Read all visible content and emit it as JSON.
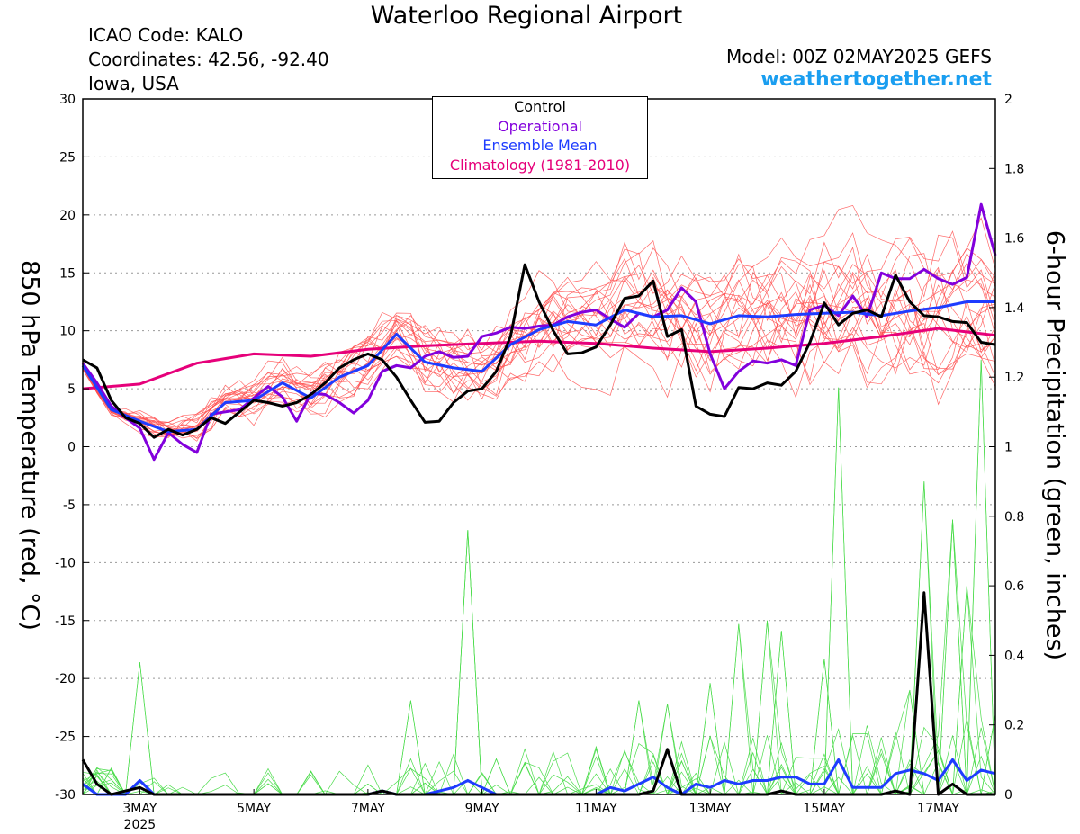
{
  "header": {
    "title": "Waterloo Regional Airport",
    "icao": "ICAO Code: KALO",
    "coordinates": "Coordinates: 42.56, -92.40",
    "region": "Iowa, USA",
    "model": "Model: 00Z 02MAY2025 GEFS",
    "brand": "weathertogether.net"
  },
  "legend": {
    "control": "Control",
    "operational": "Operational",
    "ensemble_mean": "Ensemble Mean",
    "climatology": "Climatology (1981-2010)"
  },
  "colors": {
    "control": "#000000",
    "operational": "#8200dc",
    "ensemble_mean": "#1e3cff",
    "climatology": "#e6007a",
    "members_temp": "#ff4d4d",
    "members_precip": "#4bdc4b",
    "brand": "#1a9ef0"
  },
  "chart_data": {
    "type": "line",
    "x_unit": "days since 00Z 02MAY2025",
    "xlim": [
      0,
      16
    ],
    "x_ticks": [
      {
        "x": 1,
        "label": "3MAY",
        "sub": "2025"
      },
      {
        "x": 3,
        "label": "5MAY"
      },
      {
        "x": 5,
        "label": "7MAY"
      },
      {
        "x": 7,
        "label": "9MAY"
      },
      {
        "x": 9,
        "label": "11MAY"
      },
      {
        "x": 11,
        "label": "13MAY"
      },
      {
        "x": 13,
        "label": "15MAY"
      },
      {
        "x": 15,
        "label": "17MAY"
      }
    ],
    "y_left": {
      "label": "850 hPa Temperature (red, °C)",
      "lim": [
        -30,
        30
      ],
      "ticks": [
        30,
        25,
        20,
        15,
        10,
        5,
        0,
        -5,
        -10,
        -15,
        -20,
        -25,
        -30
      ]
    },
    "y_right": {
      "label": "6-hour Precipitation (green, inches)",
      "lim": [
        0,
        2
      ],
      "ticks": [
        "2",
        "1.8",
        "1.6",
        "1.4",
        "1.2",
        "1",
        "0.8",
        "0.6",
        "0.4",
        "0.2",
        "0"
      ]
    },
    "grid": "horizontal dotted",
    "legend_position": "top-center",
    "series": [
      {
        "name": "Operational",
        "axis": "temperature",
        "color": "#8200dc",
        "points": [
          [
            0,
            7.2
          ],
          [
            0.25,
            5.5
          ],
          [
            0.5,
            3.5
          ],
          [
            0.75,
            2.5
          ],
          [
            1,
            1.6
          ],
          [
            1.25,
            -1.1
          ],
          [
            1.5,
            1.2
          ],
          [
            1.75,
            0.2
          ],
          [
            2,
            -0.5
          ],
          [
            2.25,
            2.8
          ],
          [
            2.5,
            3
          ],
          [
            2.75,
            3.2
          ],
          [
            3,
            4.2
          ],
          [
            3.25,
            5.2
          ],
          [
            3.5,
            4.3
          ],
          [
            3.75,
            2.2
          ],
          [
            4,
            4.6
          ],
          [
            4.25,
            4.5
          ],
          [
            4.5,
            3.8
          ],
          [
            4.75,
            2.9
          ],
          [
            5,
            4
          ],
          [
            5.25,
            6.5
          ],
          [
            5.5,
            7
          ],
          [
            5.75,
            6.8
          ],
          [
            6,
            7.8
          ],
          [
            6.25,
            8.2
          ],
          [
            6.5,
            7.7
          ],
          [
            6.75,
            7.8
          ],
          [
            7,
            9.5
          ],
          [
            7.25,
            9.8
          ],
          [
            7.5,
            10.3
          ],
          [
            7.75,
            10.2
          ],
          [
            8,
            10.4
          ],
          [
            8.25,
            10.5
          ],
          [
            8.5,
            11.2
          ],
          [
            8.75,
            11.6
          ],
          [
            9,
            11.8
          ],
          [
            9.25,
            11
          ],
          [
            9.5,
            10.3
          ],
          [
            9.75,
            11.5
          ],
          [
            10,
            11.2
          ],
          [
            10.25,
            11.8
          ],
          [
            10.5,
            13.7
          ],
          [
            10.75,
            12.5
          ],
          [
            11,
            8
          ],
          [
            11.25,
            5
          ],
          [
            11.5,
            6.5
          ],
          [
            11.75,
            7.4
          ],
          [
            12,
            7.2
          ],
          [
            12.25,
            7.5
          ],
          [
            12.5,
            7
          ],
          [
            12.75,
            11.8
          ],
          [
            13,
            12.2
          ],
          [
            13.25,
            11.3
          ],
          [
            13.5,
            13
          ],
          [
            13.75,
            11.2
          ],
          [
            14,
            15
          ],
          [
            14.25,
            14.5
          ],
          [
            14.5,
            14.5
          ],
          [
            14.75,
            15.3
          ],
          [
            15,
            14.5
          ],
          [
            15.25,
            14
          ],
          [
            15.5,
            14.6
          ],
          [
            15.75,
            20.9
          ],
          [
            16,
            16.5
          ]
        ]
      },
      {
        "name": "Ensemble Mean",
        "axis": "temperature",
        "color": "#1e3cff",
        "points": [
          [
            0,
            7
          ],
          [
            0.5,
            3.2
          ],
          [
            1,
            2.2
          ],
          [
            1.5,
            1.3
          ],
          [
            2,
            1.5
          ],
          [
            2.5,
            3.8
          ],
          [
            3,
            4
          ],
          [
            3.5,
            5.5
          ],
          [
            4,
            4.2
          ],
          [
            4.5,
            6
          ],
          [
            5,
            7
          ],
          [
            5.5,
            9.7
          ],
          [
            6,
            7.3
          ],
          [
            6.5,
            6.8
          ],
          [
            7,
            6.5
          ],
          [
            7.5,
            8.8
          ],
          [
            8,
            10.1
          ],
          [
            8.5,
            10.8
          ],
          [
            9,
            10.5
          ],
          [
            9.5,
            11.8
          ],
          [
            10,
            11.2
          ],
          [
            10.5,
            11.3
          ],
          [
            11,
            10.6
          ],
          [
            11.5,
            11.3
          ],
          [
            12,
            11.2
          ],
          [
            12.5,
            11.4
          ],
          [
            13,
            11.5
          ],
          [
            13.5,
            11.6
          ],
          [
            14,
            11.3
          ],
          [
            14.5,
            11.7
          ],
          [
            15,
            12
          ],
          [
            15.5,
            12.5
          ],
          [
            16,
            12.5
          ]
        ]
      },
      {
        "name": "Control",
        "axis": "temperature",
        "color": "#000000",
        "points": [
          [
            0,
            7.5
          ],
          [
            0.25,
            6.8
          ],
          [
            0.5,
            4
          ],
          [
            0.75,
            2.5
          ],
          [
            1,
            2
          ],
          [
            1.25,
            0.8
          ],
          [
            1.5,
            1.5
          ],
          [
            1.75,
            1
          ],
          [
            2,
            1.5
          ],
          [
            2.25,
            2.5
          ],
          [
            2.5,
            2
          ],
          [
            2.75,
            3
          ],
          [
            3,
            4
          ],
          [
            3.25,
            3.8
          ],
          [
            3.5,
            3.5
          ],
          [
            3.75,
            3.8
          ],
          [
            4,
            4.5
          ],
          [
            4.25,
            5.5
          ],
          [
            4.5,
            6.8
          ],
          [
            4.75,
            7.5
          ],
          [
            5,
            8
          ],
          [
            5.25,
            7.5
          ],
          [
            5.5,
            6
          ],
          [
            5.75,
            4
          ],
          [
            6,
            2.1
          ],
          [
            6.25,
            2.2
          ],
          [
            6.5,
            3.8
          ],
          [
            6.75,
            4.8
          ],
          [
            7,
            5
          ],
          [
            7.25,
            6.5
          ],
          [
            7.5,
            9.5
          ],
          [
            7.75,
            15.7
          ],
          [
            8,
            12.5
          ],
          [
            8.25,
            10
          ],
          [
            8.5,
            8
          ],
          [
            8.75,
            8.1
          ],
          [
            9,
            8.6
          ],
          [
            9.25,
            10.5
          ],
          [
            9.5,
            12.8
          ],
          [
            9.75,
            13
          ],
          [
            10,
            14.3
          ],
          [
            10.25,
            9.5
          ],
          [
            10.5,
            10.1
          ],
          [
            10.75,
            3.5
          ],
          [
            11,
            2.8
          ],
          [
            11.25,
            2.6
          ],
          [
            11.5,
            5.1
          ],
          [
            11.75,
            5
          ],
          [
            12,
            5.5
          ],
          [
            12.25,
            5.3
          ],
          [
            12.5,
            6.5
          ],
          [
            12.75,
            9
          ],
          [
            13,
            12.4
          ],
          [
            13.25,
            10.5
          ],
          [
            13.5,
            11.5
          ],
          [
            13.75,
            11.8
          ],
          [
            14,
            11.2
          ],
          [
            14.25,
            14.8
          ],
          [
            14.5,
            12.5
          ],
          [
            14.75,
            11.3
          ],
          [
            15,
            11.2
          ],
          [
            15.25,
            10.8
          ],
          [
            15.5,
            10.7
          ],
          [
            15.75,
            9
          ],
          [
            16,
            8.8
          ]
        ]
      },
      {
        "name": "Climatology (1981-2010)",
        "axis": "temperature",
        "color": "#e6007a",
        "points": [
          [
            0,
            5
          ],
          [
            1,
            5.4
          ],
          [
            2,
            7.2
          ],
          [
            3,
            8
          ],
          [
            4,
            7.8
          ],
          [
            5,
            8.4
          ],
          [
            6,
            8.7
          ],
          [
            7,
            8.9
          ],
          [
            8,
            9.1
          ],
          [
            9,
            8.9
          ],
          [
            10,
            8.5
          ],
          [
            11,
            8.2
          ],
          [
            12,
            8.5
          ],
          [
            13,
            8.9
          ],
          [
            14,
            9.5
          ],
          [
            15,
            10.2
          ],
          [
            16,
            9.6
          ]
        ]
      },
      {
        "name": "Ensemble Mean",
        "axis": "precipitation",
        "color": "#1e3cff",
        "points": [
          [
            0,
            0.03
          ],
          [
            0.25,
            0
          ],
          [
            0.5,
            0
          ],
          [
            0.75,
            0
          ],
          [
            1,
            0.04
          ],
          [
            1.25,
            0
          ],
          [
            1.5,
            0
          ],
          [
            3,
            0
          ],
          [
            4,
            0
          ],
          [
            4.25,
            0
          ],
          [
            5,
            0
          ],
          [
            5.25,
            0.01
          ],
          [
            5.5,
            0
          ],
          [
            6,
            0
          ],
          [
            6.5,
            0.02
          ],
          [
            6.75,
            0.04
          ],
          [
            7,
            0.02
          ],
          [
            7.25,
            0
          ],
          [
            9,
            0
          ],
          [
            9.25,
            0.02
          ],
          [
            9.5,
            0.01
          ],
          [
            9.75,
            0.03
          ],
          [
            10,
            0.05
          ],
          [
            10.25,
            0.02
          ],
          [
            10.5,
            0
          ],
          [
            10.75,
            0.03
          ],
          [
            11,
            0.02
          ],
          [
            11.25,
            0.04
          ],
          [
            11.5,
            0.03
          ],
          [
            11.75,
            0.04
          ],
          [
            12,
            0.04
          ],
          [
            12.25,
            0.05
          ],
          [
            12.5,
            0.05
          ],
          [
            12.75,
            0.03
          ],
          [
            13,
            0.03
          ],
          [
            13.25,
            0.1
          ],
          [
            13.5,
            0.02
          ],
          [
            13.75,
            0.02
          ],
          [
            14,
            0.02
          ],
          [
            14.25,
            0.06
          ],
          [
            14.5,
            0.07
          ],
          [
            14.75,
            0.06
          ],
          [
            15,
            0.04
          ],
          [
            15.25,
            0.1
          ],
          [
            15.5,
            0.04
          ],
          [
            15.75,
            0.07
          ],
          [
            16,
            0.06
          ]
        ]
      },
      {
        "name": "Control",
        "axis": "precipitation",
        "color": "#000000",
        "points": [
          [
            0,
            0.1
          ],
          [
            0.25,
            0.03
          ],
          [
            0.5,
            0
          ],
          [
            0.75,
            0.01
          ],
          [
            1,
            0.02
          ],
          [
            1.25,
            0
          ],
          [
            4,
            0
          ],
          [
            5,
            0
          ],
          [
            5.25,
            0.01
          ],
          [
            5.5,
            0
          ],
          [
            9.75,
            0
          ],
          [
            10,
            0.01
          ],
          [
            10.25,
            0.13
          ],
          [
            10.5,
            0
          ],
          [
            11,
            0
          ],
          [
            12,
            0
          ],
          [
            12.25,
            0.01
          ],
          [
            12.5,
            0
          ],
          [
            14,
            0
          ],
          [
            14.25,
            0.01
          ],
          [
            14.5,
            0
          ],
          [
            14.75,
            0.58
          ],
          [
            15,
            0
          ],
          [
            15.25,
            0.03
          ],
          [
            15.5,
            0
          ],
          [
            16,
            0
          ]
        ]
      }
    ]
  }
}
